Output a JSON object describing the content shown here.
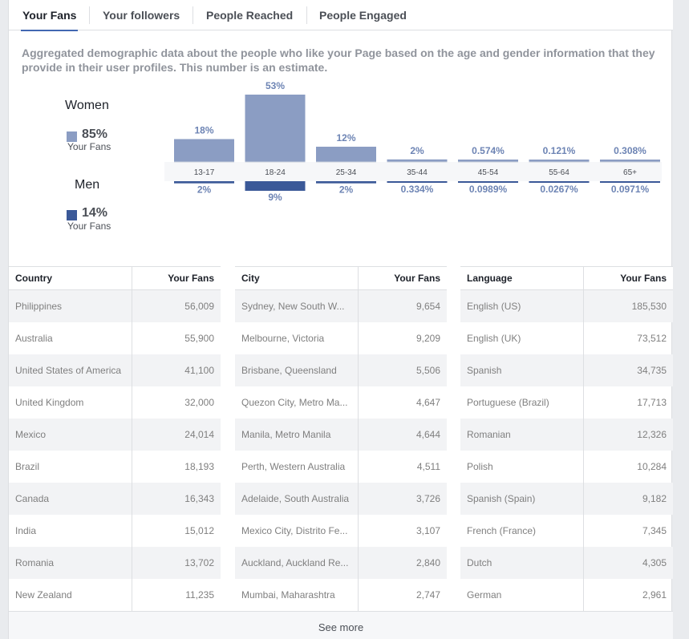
{
  "tabs": [
    "Your Fans",
    "Your followers",
    "People Reached",
    "People Engaged"
  ],
  "description": "Aggregated demographic data about the people who like your Page based on the age and gender information that they provide in their user profiles. This number is an estimate.",
  "legend": {
    "women": {
      "title": "Women",
      "pct": "85%",
      "sub": "Your Fans"
    },
    "men": {
      "title": "Men",
      "pct": "14%",
      "sub": "Your Fans"
    }
  },
  "colors": {
    "women": "#8b9dc3",
    "men": "#3b5998",
    "women_label": "#6d84b4",
    "men_label": "#6d84b4"
  },
  "chart_data": {
    "type": "bar",
    "categories": [
      "13-17",
      "18-24",
      "25-34",
      "35-44",
      "45-54",
      "55-64",
      "65+"
    ],
    "series": [
      {
        "name": "Women",
        "values": [
          18,
          53,
          12,
          2,
          0.574,
          0.121,
          0.308
        ],
        "labels": [
          "18%",
          "53%",
          "12%",
          "2%",
          "0.574%",
          "0.121%",
          "0.308%"
        ]
      },
      {
        "name": "Men",
        "values": [
          2,
          9,
          2,
          0.334,
          0.0989,
          0.0267,
          0.0971
        ],
        "labels": [
          "2%",
          "9%",
          "2%",
          "0.334%",
          "0.0989%",
          "0.0267%",
          "0.0971%"
        ]
      }
    ]
  },
  "tables": [
    {
      "headers": [
        "Country",
        "Your Fans"
      ],
      "rows": [
        [
          "Philippines",
          "56,009"
        ],
        [
          "Australia",
          "55,900"
        ],
        [
          "United States of America",
          "41,100"
        ],
        [
          "United Kingdom",
          "32,000"
        ],
        [
          "Mexico",
          "24,014"
        ],
        [
          "Brazil",
          "18,193"
        ],
        [
          "Canada",
          "16,343"
        ],
        [
          "India",
          "15,012"
        ],
        [
          "Romania",
          "13,702"
        ],
        [
          "New Zealand",
          "11,235"
        ]
      ]
    },
    {
      "headers": [
        "City",
        "Your Fans"
      ],
      "rows": [
        [
          "Sydney, New South W...",
          "9,654"
        ],
        [
          "Melbourne, Victoria",
          "9,209"
        ],
        [
          "Brisbane, Queensland",
          "5,506"
        ],
        [
          "Quezon City, Metro Ma...",
          "4,647"
        ],
        [
          "Manila, Metro Manila",
          "4,644"
        ],
        [
          "Perth, Western Australia",
          "4,511"
        ],
        [
          "Adelaide, South Australia",
          "3,726"
        ],
        [
          "Mexico City, Distrito Fe...",
          "3,107"
        ],
        [
          "Auckland, Auckland Re...",
          "2,840"
        ],
        [
          "Mumbai, Maharashtra",
          "2,747"
        ]
      ]
    },
    {
      "headers": [
        "Language",
        "Your Fans"
      ],
      "rows": [
        [
          "English (US)",
          "185,530"
        ],
        [
          "English (UK)",
          "73,512"
        ],
        [
          "Spanish",
          "34,735"
        ],
        [
          "Portuguese (Brazil)",
          "17,713"
        ],
        [
          "Romanian",
          "12,326"
        ],
        [
          "Polish",
          "10,284"
        ],
        [
          "Spanish (Spain)",
          "9,182"
        ],
        [
          "French (France)",
          "7,345"
        ],
        [
          "Dutch",
          "4,305"
        ],
        [
          "German",
          "2,961"
        ]
      ]
    }
  ],
  "see_more": "See more"
}
